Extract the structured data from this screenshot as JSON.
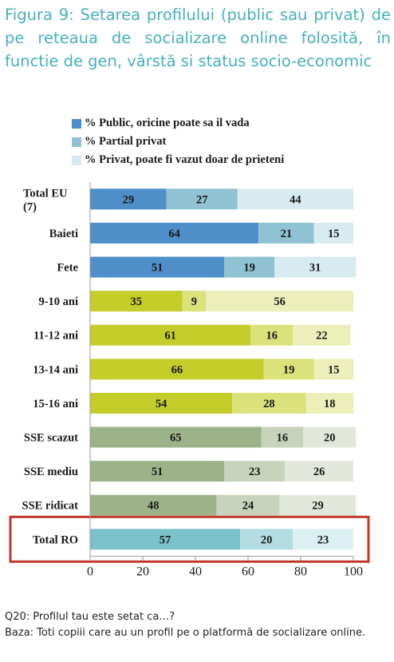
{
  "title": "Figura 9: Setarea profilului (public sau privat) de pe reteaua de socializare online folosită, în functie de gen, vârstă si status socio-economic",
  "legend": [
    {
      "label": "% Public, oricine poate sa il vada",
      "color": "#4f8fc9"
    },
    {
      "label": "% Partial privat",
      "color": "#8fc3d3"
    },
    {
      "label": "% Privat, poate fi vazut doar de prieteni",
      "color": "#d8ebf1"
    }
  ],
  "chart_data": {
    "type": "bar",
    "orientation": "horizontal",
    "stacked": true,
    "categories": [
      "Total EU (7)",
      "Baieti",
      "Fete",
      "9-10 ani",
      "11-12 ani",
      "13-14 ani",
      "15-16 ani",
      "SSE scazut",
      "SSE mediu",
      "SSE ridicat",
      "Total RO"
    ],
    "series": [
      {
        "name": "% Public, oricine poate sa il vada",
        "values": [
          29,
          64,
          51,
          35,
          61,
          66,
          54,
          65,
          51,
          48,
          57
        ]
      },
      {
        "name": "% Partial privat",
        "values": [
          27,
          21,
          19,
          9,
          16,
          19,
          28,
          16,
          23,
          24,
          20
        ]
      },
      {
        "name": "% Privat, poate fi vazut doar de prieteni",
        "values": [
          44,
          15,
          31,
          56,
          22,
          15,
          18,
          20,
          26,
          29,
          23
        ]
      }
    ],
    "group_colors": [
      [
        "#4f8fc9",
        "#8fc3d3",
        "#d8ebf1"
      ],
      [
        "#4f8fc9",
        "#8fc3d3",
        "#d8ebf1"
      ],
      [
        "#4f8fc9",
        "#8fc3d3",
        "#d8ebf1"
      ],
      [
        "#c5cd2a",
        "#dbe27c",
        "#ecefb9"
      ],
      [
        "#c5cd2a",
        "#dbe27c",
        "#ecefb9"
      ],
      [
        "#c5cd2a",
        "#dbe27c",
        "#ecefb9"
      ],
      [
        "#c5cd2a",
        "#dbe27c",
        "#ecefb9"
      ],
      [
        "#9cb38a",
        "#c7d4bb",
        "#e1e8db"
      ],
      [
        "#9cb38a",
        "#c7d4bb",
        "#e1e8db"
      ],
      [
        "#9cb38a",
        "#c7d4bb",
        "#e1e8db"
      ],
      [
        "#7cc2cb",
        "#b4dde3",
        "#daf0f3"
      ]
    ],
    "highlighted_category": "Total RO",
    "highlight_color": "#c0392b",
    "xticks": [
      0,
      20,
      40,
      60,
      80,
      100
    ],
    "xlim": [
      0,
      100
    ]
  },
  "notes": [
    "Q20: Profilul tau este setat ca…?",
    "Baza: Toti copiii care au un profil pe o platformă de socializare online."
  ]
}
